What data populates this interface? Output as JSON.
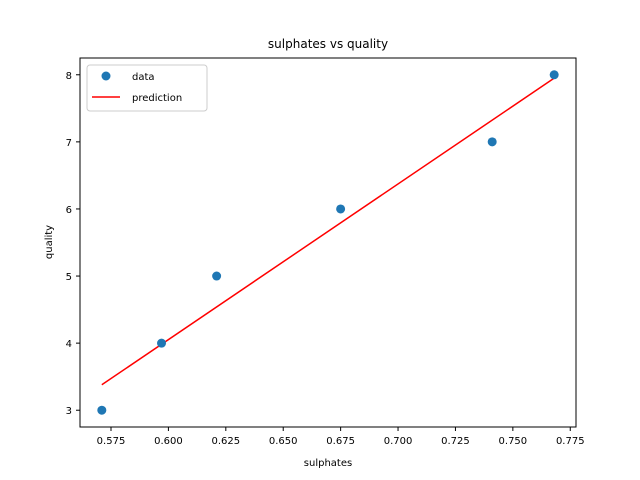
{
  "chart_data": {
    "type": "scatter",
    "title": "sulphates vs quality",
    "xlabel": "sulphates",
    "ylabel": "quality",
    "xlim": [
      0.5615,
      0.7775
    ],
    "ylim": [
      2.75,
      8.25
    ],
    "xticks": [
      0.575,
      0.6,
      0.625,
      0.65,
      0.675,
      0.7,
      0.725,
      0.75,
      0.775
    ],
    "xtick_labels": [
      "0.575",
      "0.600",
      "0.625",
      "0.650",
      "0.675",
      "0.700",
      "0.725",
      "0.750",
      "0.775"
    ],
    "yticks": [
      3,
      4,
      5,
      6,
      7,
      8
    ],
    "ytick_labels": [
      "3",
      "4",
      "5",
      "6",
      "7",
      "8"
    ],
    "grid": false,
    "legend_position": "top-left",
    "series": [
      {
        "name": "data",
        "kind": "scatter",
        "color": "#1f77b4",
        "x": [
          0.571,
          0.597,
          0.621,
          0.675,
          0.741,
          0.768
        ],
        "y": [
          3,
          4,
          5,
          6,
          7,
          8
        ]
      },
      {
        "name": "prediction",
        "kind": "line",
        "color": "#ff0000",
        "x": [
          0.571,
          0.768
        ],
        "y": [
          3.38,
          7.95
        ]
      }
    ]
  }
}
